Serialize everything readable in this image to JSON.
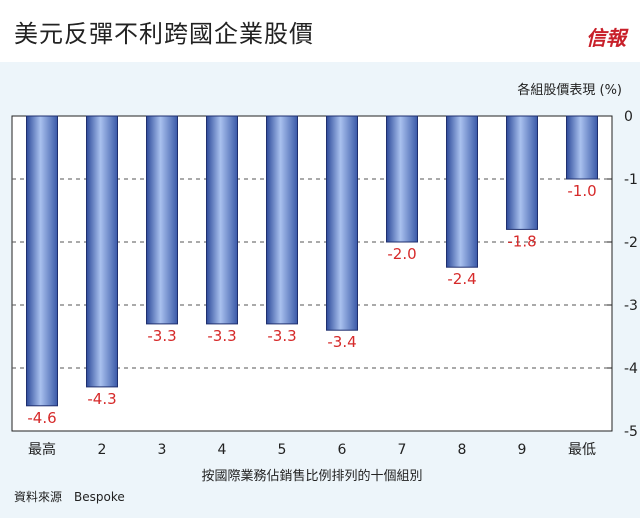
{
  "header": {
    "title": "美元反彈不利跨國企業股價",
    "logo_text": "信報"
  },
  "source": "資料來源　Bespoke",
  "colors": {
    "bar_fill": "#5a7cc4",
    "bar_edge": "#1f2f6e",
    "data_label": "#d62a2a",
    "title_logo": "#c8202a"
  },
  "chart_data": {
    "type": "bar",
    "title": "",
    "ylabel": "各組股價表現 (%)",
    "xlabel": "按國際業務佔銷售比例排列的十個組別",
    "categories": [
      "最高",
      "2",
      "3",
      "4",
      "5",
      "6",
      "7",
      "8",
      "9",
      "最低"
    ],
    "values": [
      -4.6,
      -4.3,
      -3.3,
      -3.3,
      -3.3,
      -3.4,
      -2.0,
      -2.4,
      -1.8,
      -1.0
    ],
    "data_labels": [
      "-4.6",
      "-4.3",
      "-3.3",
      "-3.3",
      "-3.3",
      "-3.4",
      "-2.0",
      "-2.4",
      "-1.8",
      "-1.0"
    ],
    "ylim": [
      -5,
      0
    ],
    "yticks": [
      0,
      -1,
      -2,
      -3,
      -4,
      -5
    ],
    "ytick_labels": [
      "0",
      "-1",
      "-2",
      "-3",
      "-4",
      "-5"
    ],
    "y_axis_side": "right",
    "grid": "dashed horizontal",
    "legend": "none"
  }
}
